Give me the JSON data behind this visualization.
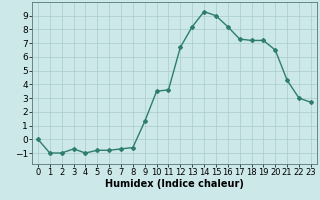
{
  "x": [
    0,
    1,
    2,
    3,
    4,
    5,
    6,
    7,
    8,
    9,
    10,
    11,
    12,
    13,
    14,
    15,
    16,
    17,
    18,
    19,
    20,
    21,
    22,
    23
  ],
  "y": [
    0,
    -1,
    -1,
    -0.7,
    -1,
    -0.8,
    -0.8,
    -0.7,
    -0.6,
    1.3,
    3.5,
    3.6,
    6.7,
    8.2,
    9.3,
    9.0,
    8.2,
    7.3,
    7.2,
    7.2,
    6.5,
    4.3,
    3.0,
    2.7
  ],
  "line_color": "#2e7d6e",
  "marker": "D",
  "marker_size": 2,
  "bg_color": "#cce8e8",
  "grid_color": "#aacccc",
  "xlabel": "Humidex (Indice chaleur)",
  "ylim": [
    -1.8,
    10.0
  ],
  "xlim": [
    -0.5,
    23.5
  ],
  "yticks": [
    -1,
    0,
    1,
    2,
    3,
    4,
    5,
    6,
    7,
    8,
    9
  ],
  "xticks": [
    0,
    1,
    2,
    3,
    4,
    5,
    6,
    7,
    8,
    9,
    10,
    11,
    12,
    13,
    14,
    15,
    16,
    17,
    18,
    19,
    20,
    21,
    22,
    23
  ],
  "xlabel_fontsize": 7,
  "tick_fontsize": 6.5,
  "line_width": 1.0
}
